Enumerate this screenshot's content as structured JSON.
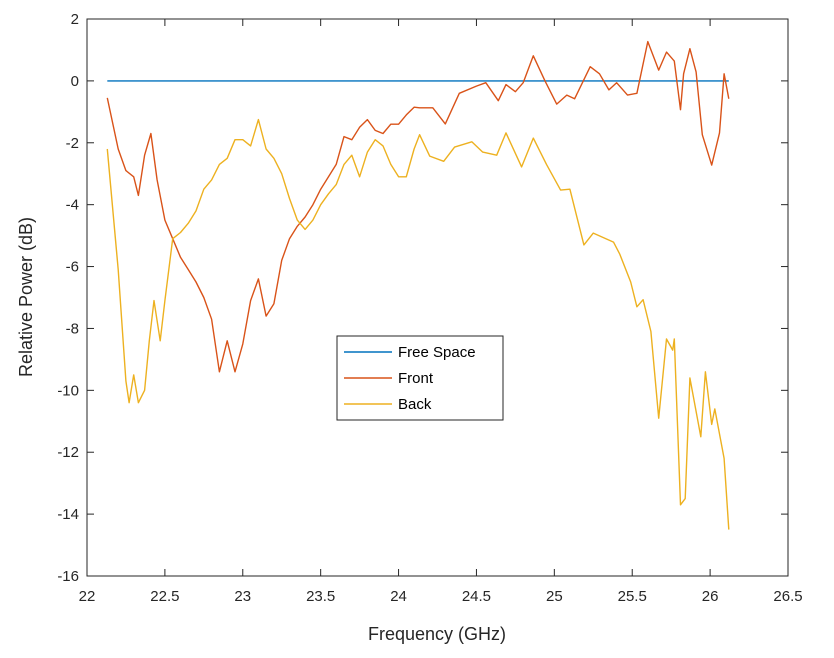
{
  "chart_data": {
    "type": "line",
    "title": "",
    "xlabel": "Frequency (GHz)",
    "ylabel": "Relative Power (dB)",
    "xlim": [
      22,
      26.5
    ],
    "ylim": [
      -16,
      2
    ],
    "xticks": [
      "22",
      "22.5",
      "23",
      "23.5",
      "24",
      "24.5",
      "25",
      "25.5",
      "26",
      "26.5"
    ],
    "yticks": [
      "2",
      "0",
      "-2",
      "-4",
      "-6",
      "-8",
      "-10",
      "-12",
      "-14",
      "-16"
    ],
    "grid": false,
    "legend_position": "center",
    "series": [
      {
        "name": "Free Space",
        "color": "#0072BD",
        "x": [
          22.13,
          26.12
        ],
        "y": [
          0,
          0
        ]
      },
      {
        "name": "Front",
        "color": "#D95319",
        "x": [
          22.13,
          22.2,
          22.25,
          22.3,
          22.33,
          22.37,
          22.41,
          22.45,
          22.5,
          22.55,
          22.6,
          22.65,
          22.7,
          22.75,
          22.8,
          22.85,
          22.9,
          22.95,
          23.0,
          23.05,
          23.1,
          23.15,
          23.2,
          23.25,
          23.3,
          23.35,
          23.4,
          23.45,
          23.5,
          23.55,
          23.6,
          23.65,
          23.7,
          23.75,
          23.8,
          23.85,
          23.9,
          23.95,
          24.0,
          24.05,
          24.1,
          24.135,
          24.22,
          24.3,
          24.39,
          24.5,
          24.56,
          24.64,
          24.69,
          24.75,
          24.8,
          24.865,
          24.94,
          25.015,
          25.08,
          25.13,
          25.23,
          25.29,
          25.35,
          25.4,
          25.47,
          25.53,
          25.6,
          25.67,
          25.72,
          25.77,
          25.81,
          25.83,
          25.87,
          25.91,
          25.95,
          26.01,
          26.06,
          26.09,
          26.12
        ],
        "y": [
          -0.55,
          -2.2,
          -2.9,
          -3.1,
          -3.7,
          -2.4,
          -1.7,
          -3.2,
          -4.5,
          -5.1,
          -5.7,
          -6.1,
          -6.5,
          -7.0,
          -7.7,
          -9.4,
          -8.4,
          -9.4,
          -8.5,
          -7.1,
          -6.4,
          -7.6,
          -7.2,
          -5.8,
          -5.1,
          -4.7,
          -4.4,
          -4.0,
          -3.5,
          -3.1,
          -2.7,
          -1.8,
          -1.9,
          -1.5,
          -1.25,
          -1.6,
          -1.7,
          -1.4,
          -1.4,
          -1.1,
          -0.85,
          -0.87,
          -0.87,
          -1.39,
          -0.4,
          -0.17,
          -0.06,
          -0.64,
          -0.12,
          -0.35,
          -0.06,
          0.81,
          0,
          -0.75,
          -0.46,
          -0.58,
          0.46,
          0.23,
          -0.29,
          -0.06,
          -0.46,
          -0.4,
          1.27,
          0.35,
          0.93,
          0.64,
          -0.93,
          0.23,
          1.04,
          0.29,
          -1.74,
          -2.72,
          -1.68,
          0.23,
          -0.58
        ]
      },
      {
        "name": "Back",
        "color": "#EDB120",
        "x": [
          22.13,
          22.2,
          22.25,
          22.27,
          22.3,
          22.33,
          22.37,
          22.4,
          22.43,
          22.47,
          22.5,
          22.55,
          22.6,
          22.65,
          22.7,
          22.75,
          22.8,
          22.85,
          22.9,
          22.95,
          23.0,
          23.05,
          23.1,
          23.15,
          23.2,
          23.25,
          23.3,
          23.35,
          23.4,
          23.45,
          23.5,
          23.55,
          23.6,
          23.65,
          23.7,
          23.75,
          23.8,
          23.85,
          23.9,
          23.95,
          24.0,
          24.05,
          24.1,
          24.135,
          24.2,
          24.29,
          24.36,
          24.47,
          24.54,
          24.63,
          24.69,
          24.79,
          24.865,
          24.95,
          25.04,
          25.1,
          25.19,
          25.25,
          25.38,
          25.42,
          25.49,
          25.53,
          25.57,
          25.62,
          25.67,
          25.72,
          25.76,
          25.77,
          25.81,
          25.84,
          25.87,
          25.94,
          25.97,
          26.01,
          26.03,
          26.09,
          26.12
        ],
        "y": [
          -2.2,
          -6.1,
          -9.7,
          -10.4,
          -9.5,
          -10.4,
          -10.0,
          -8.4,
          -7.1,
          -8.4,
          -7.1,
          -5.1,
          -4.9,
          -4.6,
          -4.2,
          -3.5,
          -3.2,
          -2.7,
          -2.5,
          -1.9,
          -1.9,
          -2.1,
          -1.25,
          -2.2,
          -2.5,
          -3.0,
          -3.8,
          -4.5,
          -4.8,
          -4.5,
          -4.0,
          -3.65,
          -3.35,
          -2.7,
          -2.4,
          -3.1,
          -2.3,
          -1.9,
          -2.1,
          -2.7,
          -3.1,
          -3.1,
          -2.2,
          -1.74,
          -2.43,
          -2.6,
          -2.14,
          -1.97,
          -2.3,
          -2.4,
          -1.68,
          -2.78,
          -1.85,
          -2.7,
          -3.53,
          -3.5,
          -5.3,
          -4.92,
          -5.21,
          -5.6,
          -6.5,
          -7.3,
          -7.07,
          -8.1,
          -10.9,
          -8.34,
          -8.7,
          -8.34,
          -13.7,
          -13.5,
          -9.6,
          -11.5,
          -9.4,
          -11.1,
          -10.6,
          -12.2,
          -14.5
        ]
      }
    ]
  }
}
